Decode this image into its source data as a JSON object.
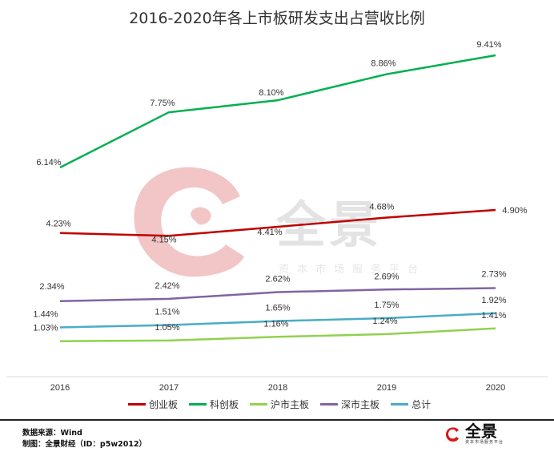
{
  "title": "2016-2020年各上市板研发支出占营收比例",
  "chart_data": {
    "type": "line",
    "x": [
      "2016",
      "2017",
      "2018",
      "2019",
      "2020"
    ],
    "series": [
      {
        "name": "创业板",
        "color": "#c00000",
        "values": [
          4.23,
          4.15,
          4.41,
          4.68,
          4.9
        ],
        "labels": [
          "4.23%",
          "4.15%",
          "4.41%",
          "4.68%",
          "4.90%"
        ]
      },
      {
        "name": "科创板",
        "color": "#00b050",
        "values": [
          6.14,
          7.75,
          8.1,
          8.86,
          9.41
        ],
        "labels": [
          "6.14%",
          "7.75%",
          "8.10%",
          "8.86%",
          "9.41%"
        ]
      },
      {
        "name": "沪市主板",
        "color": "#92d050",
        "values": [
          1.03,
          1.05,
          1.16,
          1.24,
          1.41
        ],
        "labels": [
          "1.03%",
          "1.05%",
          "1.16%",
          "1.24%",
          "1.41%"
        ]
      },
      {
        "name": "深市主板",
        "color": "#8064a2",
        "values": [
          2.34,
          2.42,
          2.62,
          2.69,
          2.73
        ],
        "labels": [
          "2.34%",
          "2.42%",
          "2.62%",
          "2.69%",
          "2.73%"
        ]
      },
      {
        "name": "总计",
        "color": "#4bacc6",
        "values": [
          1.44,
          1.51,
          1.65,
          1.75,
          1.92
        ],
        "labels": [
          "1.44%",
          "1.51%",
          "1.65%",
          "1.75%",
          "1.92%"
        ]
      }
    ],
    "legend_position": "bottom",
    "grid": false
  },
  "watermark": {
    "brand": "全景",
    "tagline": "资本市场服务平台"
  },
  "footer": {
    "source": "数据来源：Wind",
    "credit": "制图：全景财经（ID：p5w2012）",
    "logo_text": "全景",
    "logo_sub": "资本市场服务平台"
  }
}
